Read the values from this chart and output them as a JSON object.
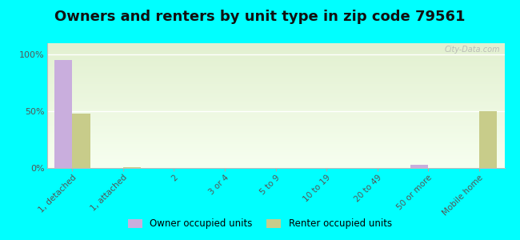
{
  "title": "Owners and renters by unit type in zip code 79561",
  "categories": [
    "1, detached",
    "1, attached",
    "2",
    "3 or 4",
    "5 to 9",
    "10 to 19",
    "20 to 49",
    "50 or more",
    "Mobile home"
  ],
  "owner_values": [
    95,
    0,
    0,
    0,
    0,
    0,
    0,
    3,
    0
  ],
  "renter_values": [
    48,
    1,
    0,
    0,
    0,
    0,
    0,
    0,
    50
  ],
  "owner_color": "#c9aedd",
  "renter_color": "#c8cc8a",
  "background_color": "#00ffff",
  "ylabel_ticks": [
    "0%",
    "50%",
    "100%"
  ],
  "ytick_values": [
    0,
    50,
    100
  ],
  "bar_width": 0.35,
  "title_fontsize": 13,
  "watermark": "City-Data.com",
  "grad_top": "#e2f0d0",
  "grad_bottom": "#f7fff0"
}
